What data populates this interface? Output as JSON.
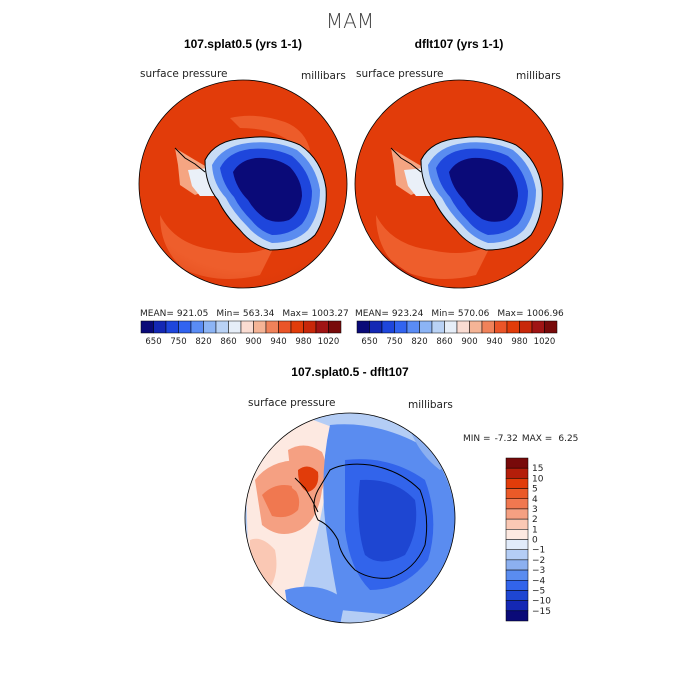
{
  "figure": {
    "season": "MAM",
    "panels": {
      "left_title": "107.splat0.5 (yrs 1-1)",
      "right_title": "dflt107 (yrs 1-1)",
      "diff_title": "107.splat0.5 - dflt107"
    },
    "variable": "surface pressure",
    "units": "millibars",
    "left_stats": {
      "mean": "921.05",
      "min": "563.34",
      "max": "1003.27"
    },
    "right_stats": {
      "mean": "923.24",
      "min": "570.06",
      "max": "1006.96"
    },
    "diff_stats": {
      "min": "-7.32",
      "max": "6.25"
    },
    "stat_labels": {
      "mean": "MEAN=",
      "min": "Min=",
      "max": "Max=",
      "dmin": "MIN =",
      "dmax": "MAX ="
    }
  },
  "chart_data": [
    {
      "type": "heatmap",
      "projection": "south-polar-stereographic",
      "title": "107.splat0.5 (yrs 1-1)",
      "variable": "surface pressure",
      "units": "millibars",
      "mean": 921.05,
      "min": 563.34,
      "max": 1003.27,
      "colorbar": {
        "orientation": "horizontal",
        "tick_labels": [
          "650",
          "750",
          "820",
          "860",
          "900",
          "940",
          "980",
          "1020"
        ],
        "colors": [
          "#0a0a78",
          "#1428b4",
          "#1e46dc",
          "#3264f0",
          "#5a8cf5",
          "#8cb4f5",
          "#b9d2f5",
          "#e6eef8",
          "#fadcd2",
          "#f5b496",
          "#f0825a",
          "#eb5528",
          "#e13c0a",
          "#c8280a",
          "#a01414",
          "#780a0a"
        ]
      }
    },
    {
      "type": "heatmap",
      "projection": "south-polar-stereographic",
      "title": "dflt107 (yrs 1-1)",
      "variable": "surface pressure",
      "units": "millibars",
      "mean": 923.24,
      "min": 570.06,
      "max": 1006.96,
      "colorbar": {
        "orientation": "horizontal",
        "tick_labels": [
          "650",
          "750",
          "820",
          "860",
          "900",
          "940",
          "980",
          "1020"
        ],
        "colors": [
          "#0a0a78",
          "#1428b4",
          "#1e46dc",
          "#3264f0",
          "#5a8cf5",
          "#8cb4f5",
          "#b9d2f5",
          "#e6eef8",
          "#fadcd2",
          "#f5b496",
          "#f0825a",
          "#eb5528",
          "#e13c0a",
          "#c8280a",
          "#a01414",
          "#780a0a"
        ]
      }
    },
    {
      "type": "heatmap",
      "projection": "south-polar-stereographic",
      "title": "107.splat0.5 - dflt107",
      "variable": "surface pressure",
      "units": "millibars",
      "min": -7.32,
      "max": 6.25,
      "colorbar": {
        "orientation": "vertical",
        "tick_labels": [
          "15",
          "10",
          "5",
          "4",
          "3",
          "2",
          "1",
          "0",
          "−1",
          "−2",
          "−3",
          "−4",
          "−5",
          "−10",
          "−15"
        ],
        "colors": [
          "#780a0a",
          "#b41e0a",
          "#e13c0a",
          "#eb5a28",
          "#f07850",
          "#f5a082",
          "#fac8b4",
          "#fde9e1",
          "#e1ebfa",
          "#b4cdf5",
          "#8cb0f0",
          "#5a8cf0",
          "#3264eb",
          "#1e46d2",
          "#1428b4",
          "#0a0a78"
        ]
      }
    }
  ]
}
